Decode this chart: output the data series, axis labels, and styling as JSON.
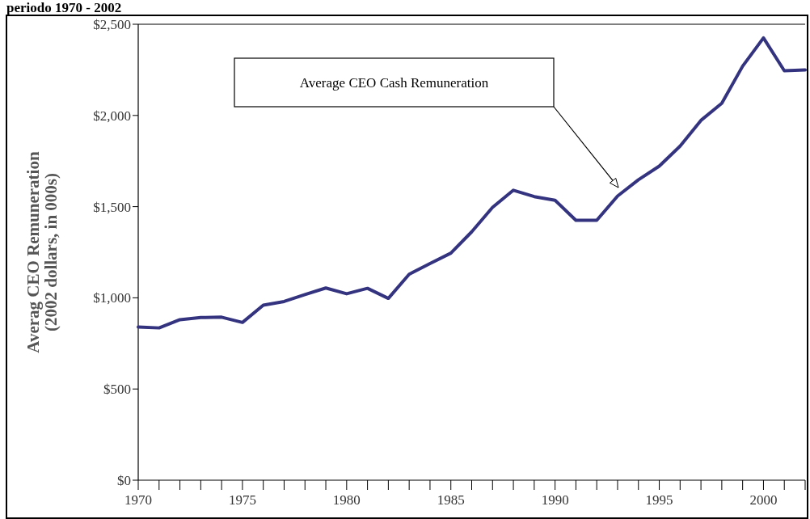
{
  "chart_data": {
    "type": "line",
    "title": "periodo 1970 - 2002",
    "ylabel": "Averag CEO Remuneration\n(2002 dollars, in 000s)",
    "x": [
      1970,
      1971,
      1972,
      1973,
      1974,
      1975,
      1976,
      1977,
      1978,
      1979,
      1980,
      1981,
      1982,
      1983,
      1984,
      1985,
      1986,
      1987,
      1988,
      1989,
      1990,
      1991,
      1992,
      1993,
      1994,
      1995,
      1996,
      1997,
      1998,
      1999,
      2000,
      2001,
      2002
    ],
    "series": [
      {
        "color": "#333380",
        "values": [
          840,
          835,
          880,
          892,
          894,
          865,
          960,
          980,
          1018,
          1054,
          1022,
          1052,
          997,
          1129,
          1188,
          1245,
          1362,
          1496,
          1590,
          1555,
          1535,
          1425,
          1425,
          1558,
          1647,
          1722,
          1832,
          1973,
          2067,
          2270,
          2425,
          2245,
          2250
        ]
      }
    ],
    "xlim": [
      1970,
      2002
    ],
    "xticks": [
      1970,
      {
        "value": 1971,
        "label": null
      },
      {
        "value": 1972,
        "label": null
      },
      {
        "value": 1973,
        "label": null
      },
      {
        "value": 1974,
        "label": null
      },
      1975,
      {
        "value": 1976,
        "label": null
      },
      {
        "value": 1977,
        "label": null
      },
      {
        "value": 1978,
        "label": null
      },
      {
        "value": 1979,
        "label": null
      },
      1980,
      {
        "value": 1981,
        "label": null
      },
      {
        "value": 1982,
        "label": null
      },
      {
        "value": 1983,
        "label": null
      },
      {
        "value": 1984,
        "label": null
      },
      1985,
      {
        "value": 1986,
        "label": null
      },
      {
        "value": 1987,
        "label": null
      },
      {
        "value": 1988,
        "label": null
      },
      {
        "value": 1989,
        "label": null
      },
      1990,
      {
        "value": 1991,
        "label": null
      },
      {
        "value": 1992,
        "label": null
      },
      {
        "value": 1993,
        "label": null
      },
      {
        "value": 1994,
        "label": null
      },
      1995,
      {
        "value": 1996,
        "label": null
      },
      {
        "value": 1997,
        "label": null
      },
      {
        "value": 1998,
        "label": null
      },
      {
        "value": 1999,
        "label": null
      },
      2000,
      {
        "value": 2001,
        "label": null
      },
      {
        "value": 2002,
        "label": null
      }
    ],
    "ylim": [
      0,
      2500
    ],
    "yticks": [
      {
        "value": 0,
        "label": "$0"
      },
      {
        "value": 500,
        "label": "$500"
      },
      {
        "value": 1000,
        "label": "$1,000"
      },
      {
        "value": 1500,
        "label": "$1,500"
      },
      {
        "value": 2000,
        "label": "$2,000"
      },
      {
        "value": 2500,
        "label": "$2,500"
      }
    ],
    "grid": false,
    "marker": "none",
    "line_style": "solid",
    "annotations": [
      "Average CEO Cash Remuneration"
    ]
  }
}
